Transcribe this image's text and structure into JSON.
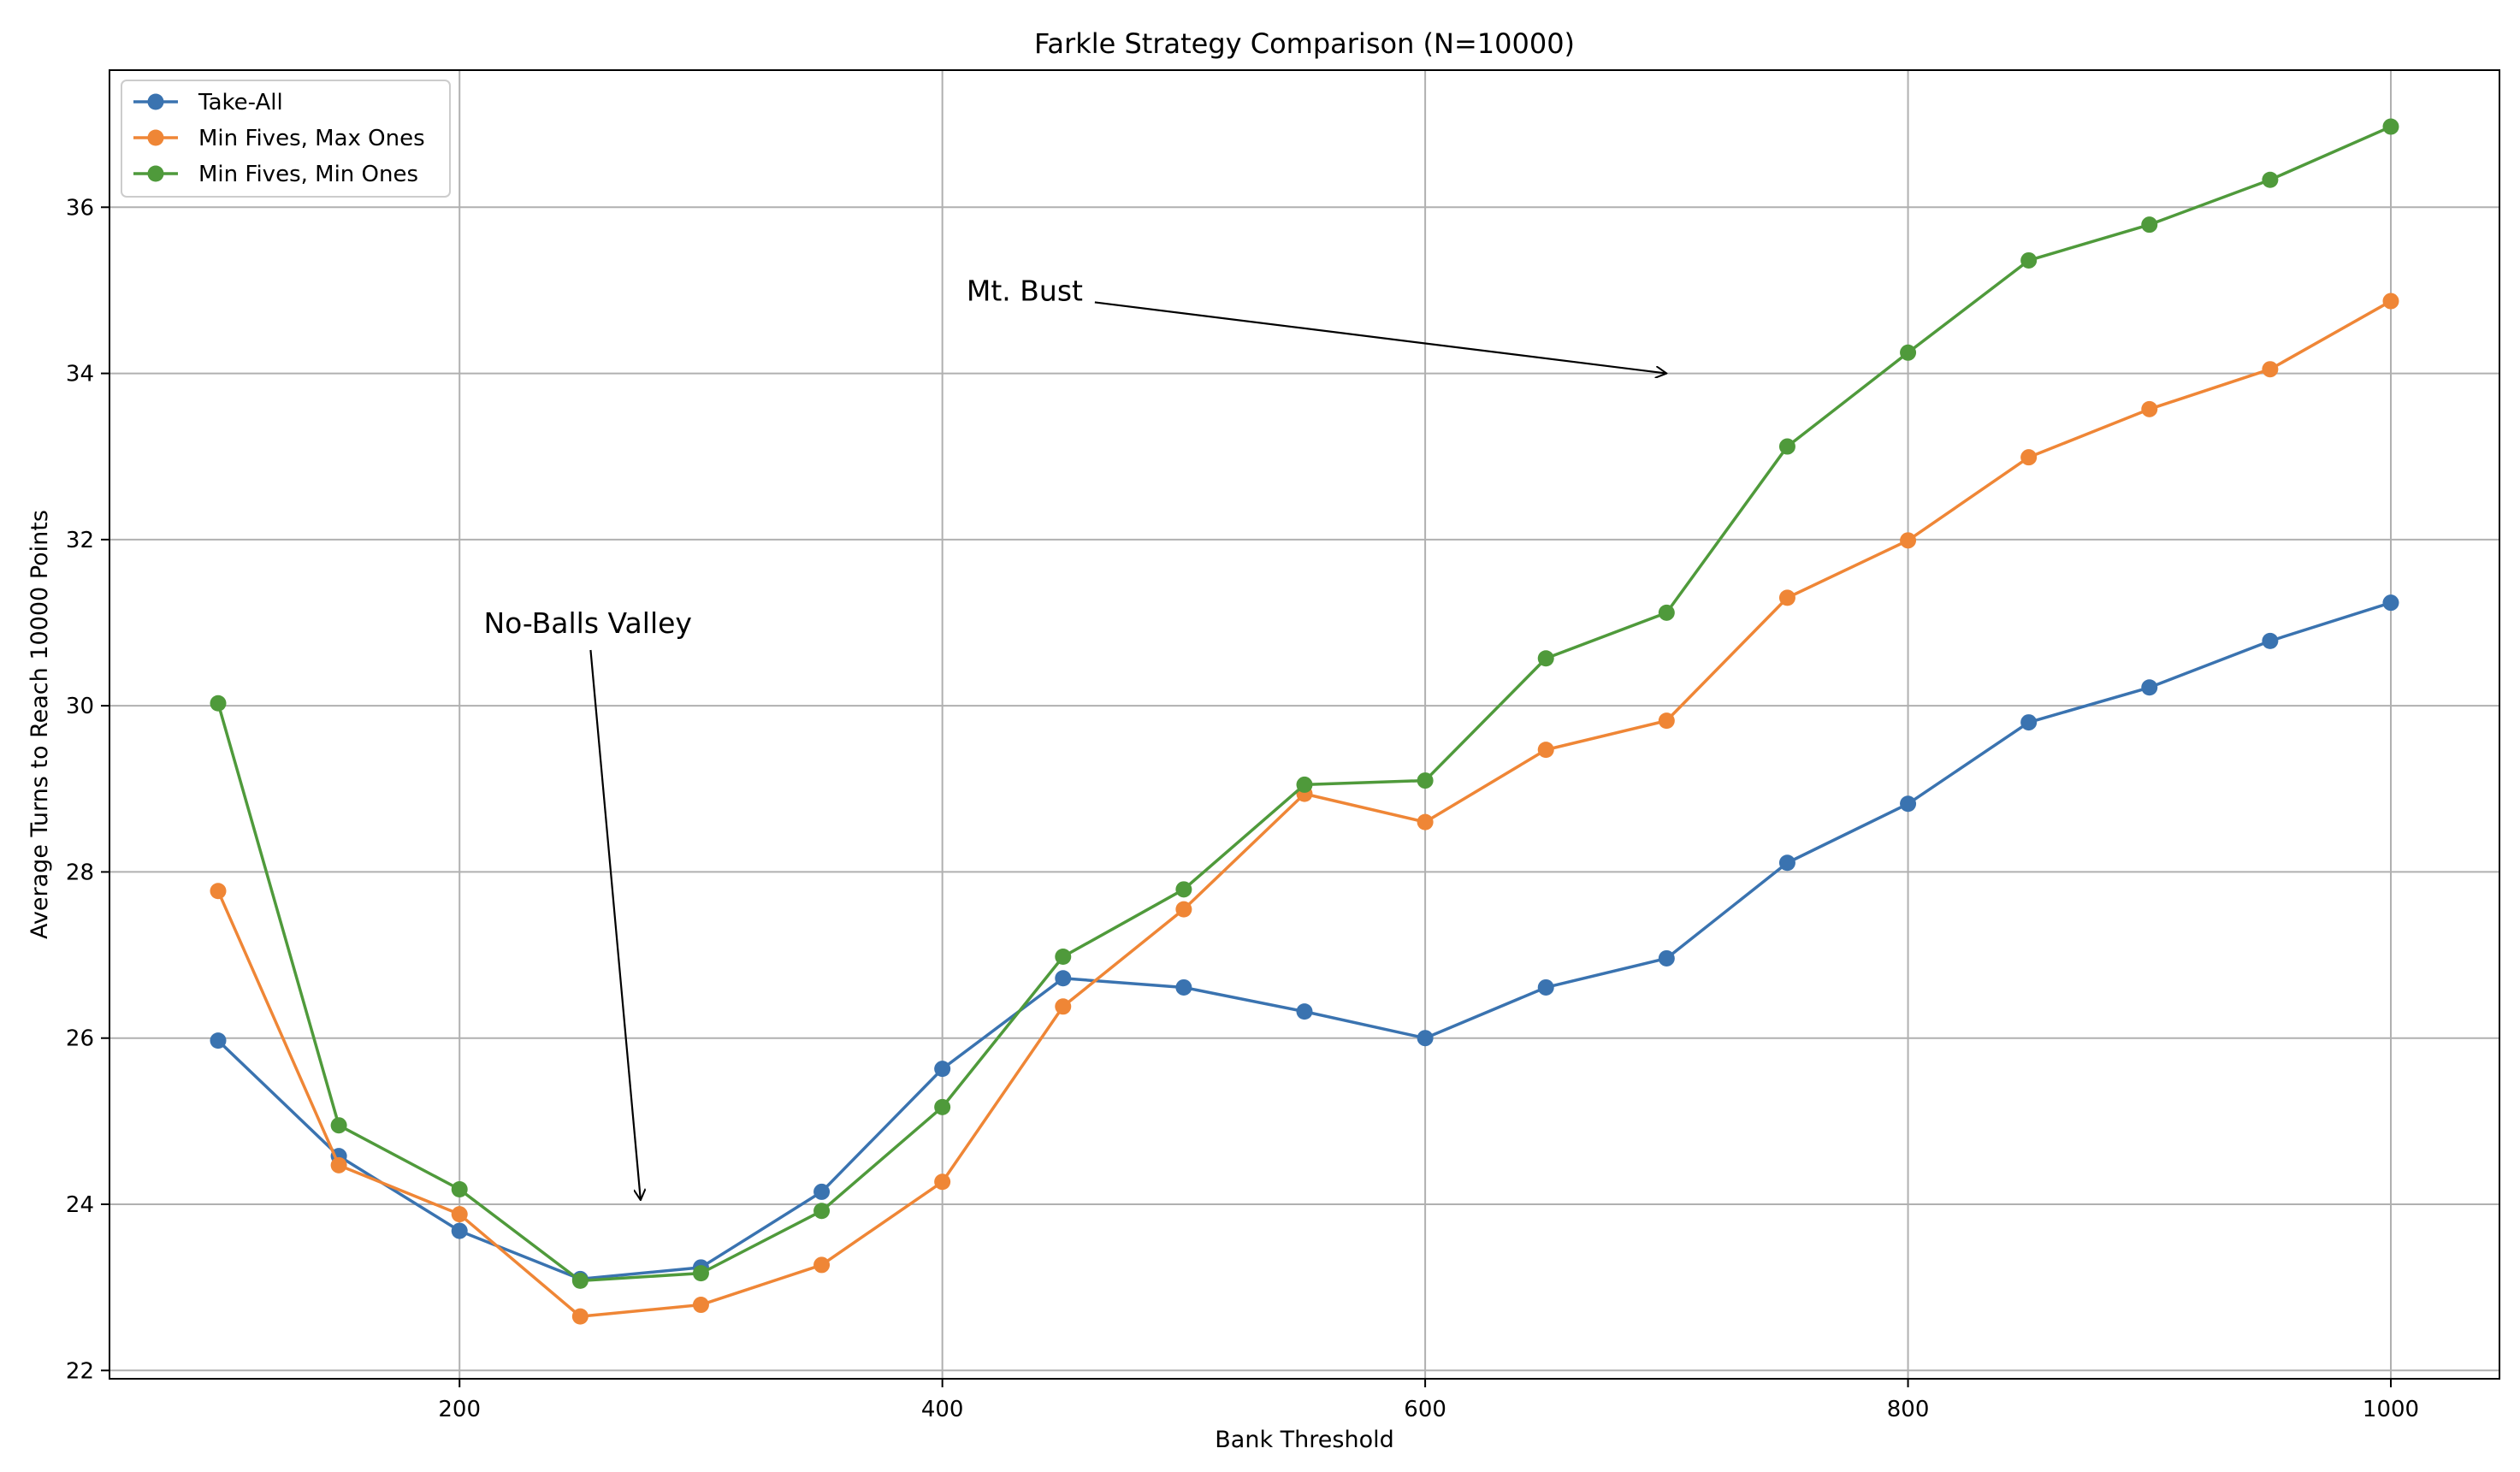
{
  "chart_data": {
    "type": "line",
    "title": "Farkle Strategy Comparison (N=10000)",
    "xlabel": "Bank Threshold",
    "ylabel": "Average Turns to Reach 10000 Points",
    "xlim": [
      55,
      1045
    ],
    "ylim": [
      21.9,
      37.65
    ],
    "x_ticks": [
      200,
      400,
      600,
      800,
      1000
    ],
    "y_ticks": [
      22,
      24,
      26,
      28,
      30,
      32,
      34,
      36
    ],
    "grid": true,
    "legend_position": "upper-left",
    "x": [
      100,
      150,
      200,
      250,
      300,
      350,
      400,
      450,
      500,
      550,
      600,
      650,
      700,
      750,
      800,
      850,
      900,
      950,
      1000
    ],
    "series": [
      {
        "name": "Take-All",
        "color": "#3a73b0",
        "marker": "circle",
        "values": [
          25.97,
          24.58,
          23.68,
          23.1,
          23.24,
          24.15,
          25.63,
          26.72,
          26.61,
          26.32,
          26.0,
          26.61,
          26.96,
          28.11,
          28.82,
          29.8,
          30.22,
          30.78,
          31.24
        ]
      },
      {
        "name": "Min Fives, Max Ones",
        "color": "#ef8636",
        "marker": "circle",
        "values": [
          27.77,
          24.47,
          23.88,
          22.65,
          22.79,
          23.27,
          24.27,
          26.38,
          27.55,
          28.94,
          28.6,
          29.47,
          29.82,
          31.3,
          31.99,
          32.99,
          33.57,
          34.05,
          34.87
        ]
      },
      {
        "name": "Min Fives, Min Ones",
        "color": "#4f9a3b",
        "marker": "circle",
        "values": [
          30.03,
          24.95,
          24.18,
          23.08,
          23.17,
          23.92,
          25.17,
          26.98,
          27.79,
          29.05,
          29.1,
          30.57,
          31.12,
          33.12,
          34.25,
          35.36,
          35.79,
          36.33,
          36.97
        ]
      }
    ],
    "annotations": [
      {
        "text": "Mt. Bust",
        "text_at": [
          410,
          35.0
        ],
        "arrow_to": [
          700,
          34.0
        ]
      },
      {
        "text": "No-Balls Valley",
        "text_at": [
          210,
          31.0
        ],
        "arrow_to": [
          275,
          24.05
        ]
      }
    ]
  }
}
